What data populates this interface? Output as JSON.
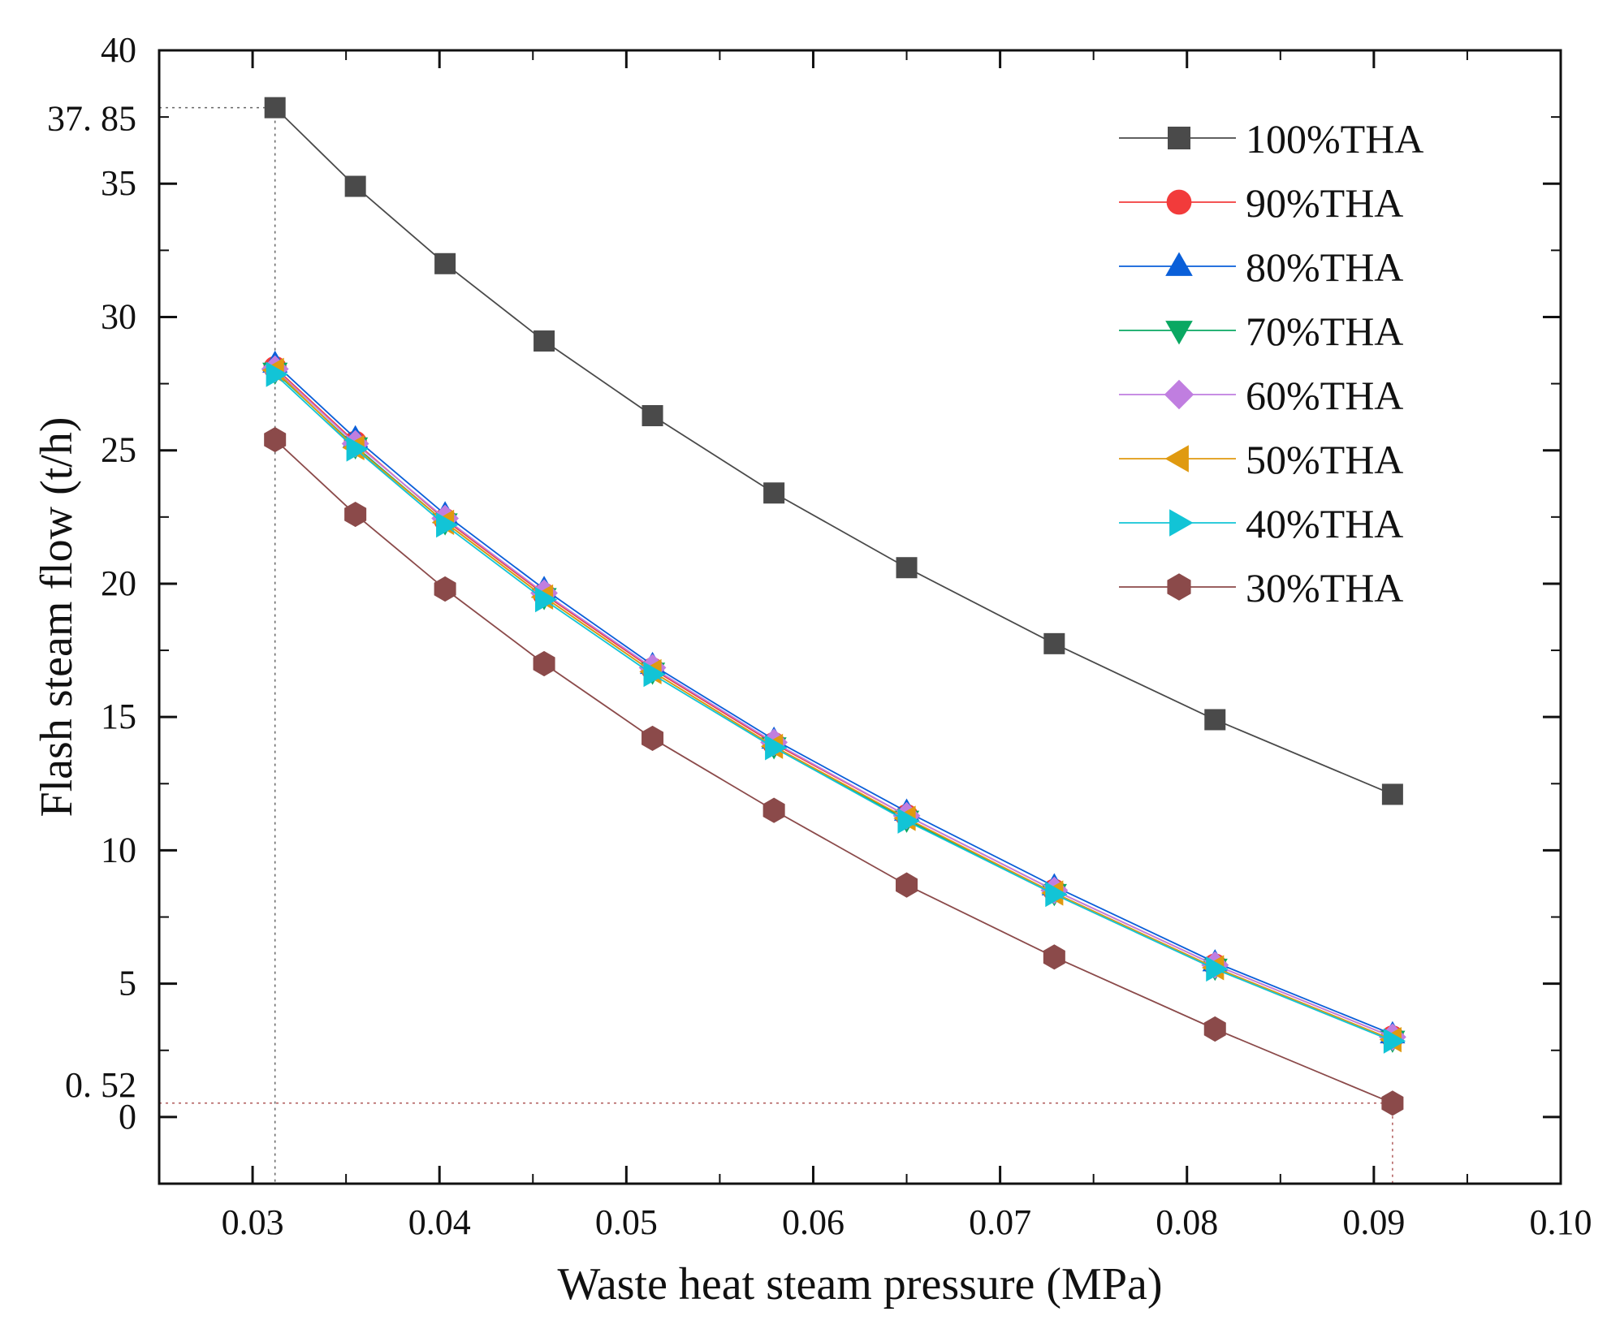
{
  "chart_data": {
    "type": "line",
    "xlabel": "Waste heat steam pressure (MPa)",
    "ylabel": "Flash steam flow (t/h)",
    "xlim": [
      0.025,
      0.1
    ],
    "ylim": [
      -2.5,
      40
    ],
    "x_ticks": [
      {
        "value": 0.03,
        "label": "0.03"
      },
      {
        "value": 0.04,
        "label": "0.04"
      },
      {
        "value": 0.05,
        "label": "0.05"
      },
      {
        "value": 0.06,
        "label": "0.06"
      },
      {
        "value": 0.07,
        "label": "0.07"
      },
      {
        "value": 0.08,
        "label": "0.08"
      },
      {
        "value": 0.09,
        "label": "0.09"
      },
      {
        "value": 0.1,
        "label": "0.10"
      }
    ],
    "y_ticks": [
      {
        "value": 0,
        "label": "0"
      },
      {
        "value": 5,
        "label": "5"
      },
      {
        "value": 10,
        "label": "10"
      },
      {
        "value": 15,
        "label": "15"
      },
      {
        "value": 20,
        "label": "20"
      },
      {
        "value": 25,
        "label": "25"
      },
      {
        "value": 30,
        "label": "30"
      },
      {
        "value": 35,
        "label": "35"
      },
      {
        "value": 40,
        "label": "40"
      }
    ],
    "x": [
      0.0312,
      0.0355,
      0.0403,
      0.0456,
      0.0514,
      0.0579,
      0.065,
      0.0729,
      0.0815,
      0.091
    ],
    "series": [
      {
        "name": "100%THA",
        "color": "#4a4a4a",
        "marker": "square",
        "values": [
          37.85,
          34.9,
          32.0,
          29.1,
          26.3,
          23.4,
          20.6,
          17.75,
          14.9,
          12.1
        ]
      },
      {
        "name": "90%THA",
        "color": "#f23b3b",
        "marker": "circle",
        "values": [
          28.1,
          25.3,
          22.4,
          19.6,
          16.8,
          14.0,
          11.3,
          8.5,
          5.7,
          3.0
        ]
      },
      {
        "name": "80%THA",
        "color": "#0a5fd9",
        "marker": "triangle-up",
        "values": [
          28.25,
          25.45,
          22.6,
          19.8,
          16.95,
          14.15,
          11.45,
          8.65,
          5.8,
          3.1
        ]
      },
      {
        "name": "70%THA",
        "color": "#0aa862",
        "marker": "triangle-down",
        "values": [
          27.95,
          25.15,
          22.3,
          19.5,
          16.7,
          13.9,
          11.15,
          8.4,
          5.6,
          2.9
        ]
      },
      {
        "name": "60%THA",
        "color": "#c07ee0",
        "marker": "diamond",
        "values": [
          28.05,
          25.25,
          22.45,
          19.65,
          16.85,
          14.05,
          11.3,
          8.5,
          5.7,
          3.0
        ]
      },
      {
        "name": "50%THA",
        "color": "#e09a10",
        "marker": "triangle-left",
        "values": [
          28.0,
          25.1,
          22.3,
          19.5,
          16.7,
          13.9,
          11.2,
          8.4,
          5.6,
          2.9
        ]
      },
      {
        "name": "40%THA",
        "color": "#12c4d6",
        "marker": "triangle-right",
        "values": [
          27.85,
          25.05,
          22.2,
          19.4,
          16.6,
          13.85,
          11.1,
          8.35,
          5.55,
          2.85
        ]
      },
      {
        "name": "30%THA",
        "color": "#8b4a4a",
        "marker": "hexagon",
        "values": [
          25.4,
          22.6,
          19.8,
          17.0,
          14.2,
          11.5,
          8.7,
          6.0,
          3.3,
          0.52
        ]
      }
    ],
    "annotations": [
      {
        "y": 37.85,
        "label": "37. 85",
        "x": 0.0312
      },
      {
        "y": 0.52,
        "label": "0. 52",
        "x": 0.091
      }
    ],
    "legend_position": "top-right",
    "grid": false
  }
}
